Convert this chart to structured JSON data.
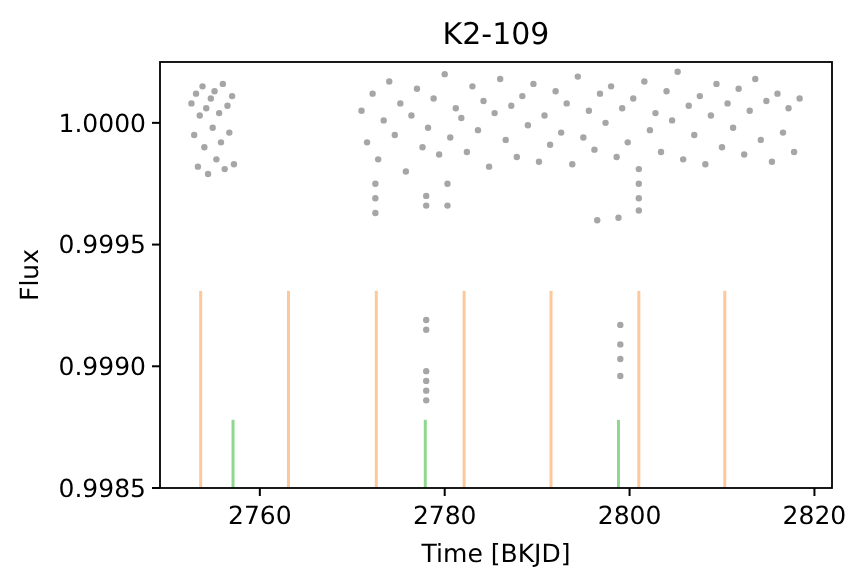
{
  "chart_data": {
    "type": "scatter",
    "title": "K2-109",
    "xlabel": "Time [BKJD]",
    "ylabel": "Flux",
    "xlim": [
      2749.2,
      2821.9
    ],
    "xticks": [
      2760,
      2780,
      2800,
      2820
    ],
    "ylim": [
      0.9985,
      1.00025
    ],
    "yticks": [
      0.9985,
      {
        "value": 0.999,
        "label": "0.9990"
      },
      0.9995,
      {
        "value": 1,
        "label": "1.0000"
      }
    ],
    "grid": false,
    "marker": "circle",
    "series": [
      {
        "color": "#000000",
        "x": [
          2752.6,
          2752.9,
          2753.1,
          2753.3,
          2753.5,
          2753.8,
          2754.0,
          2754.2,
          2754.4,
          2754.7,
          2754.9,
          2755.1,
          2755.3,
          2755.6,
          2755.8,
          2756.0,
          2756.2,
          2756.5,
          2756.7,
          2757.0,
          2757.2,
          2771.0,
          2771.6,
          2772.2,
          2772.8,
          2773.4,
          2774.0,
          2774.6,
          2775.2,
          2775.8,
          2776.4,
          2777.0,
          2777.6,
          2778.2,
          2778.8,
          2779.4,
          2780.0,
          2780.6,
          2781.2,
          2781.8,
          2782.4,
          2783.0,
          2783.6,
          2784.2,
          2784.8,
          2785.4,
          2786.0,
          2786.6,
          2787.2,
          2787.8,
          2788.4,
          2789.0,
          2789.6,
          2790.2,
          2790.8,
          2791.4,
          2792.0,
          2792.6,
          2793.2,
          2793.8,
          2794.4,
          2795.0,
          2795.6,
          2796.2,
          2796.8,
          2797.4,
          2798.0,
          2798.6,
          2799.2,
          2799.8,
          2800.4,
          2801.0,
          2801.6,
          2802.2,
          2802.8,
          2803.4,
          2804.0,
          2804.6,
          2805.2,
          2805.8,
          2806.4,
          2807.0,
          2807.6,
          2808.2,
          2808.8,
          2809.4,
          2810.0,
          2810.6,
          2811.2,
          2811.8,
          2812.4,
          2813.0,
          2813.6,
          2814.2,
          2814.8,
          2815.4,
          2816.0,
          2816.6,
          2817.2,
          2817.8,
          2818.4,
          2772.5,
          2772.5,
          2772.5,
          2778,
          2778,
          2778,
          2778,
          2778,
          2778,
          2778,
          2778,
          2780.3,
          2780.3,
          2796.5,
          2798.8,
          2799,
          2799,
          2799,
          2799,
          2801,
          2801,
          2801
        ],
        "values": [
          1.00008,
          0.99995,
          1.00012,
          0.99982,
          1.00003,
          1.00015,
          0.9999,
          1.00006,
          0.99979,
          1.0001,
          0.99998,
          1.00013,
          0.99985,
          1.00004,
          0.99992,
          1.00016,
          0.99981,
          1.00007,
          0.99996,
          1.00011,
          0.99983,
          1.00005,
          0.99992,
          1.00012,
          0.99985,
          1.00001,
          1.00017,
          0.99995,
          1.00008,
          0.9998,
          1.00003,
          1.00014,
          0.9999,
          0.99998,
          1.0001,
          0.99987,
          1.0002,
          0.99994,
          1.00006,
          1.00002,
          0.99988,
          1.00015,
          0.99997,
          1.00009,
          0.99982,
          1.00004,
          1.00018,
          0.99993,
          1.00007,
          0.99986,
          1.00011,
          0.99999,
          1.00016,
          0.99984,
          1.00003,
          0.99991,
          1.00013,
          0.99996,
          1.00008,
          0.99983,
          1.00019,
          0.99994,
          1.00005,
          0.99989,
          1.00012,
          1.0,
          1.00015,
          0.99986,
          1.00006,
          0.99992,
          1.0001,
          0.99981,
          1.00017,
          0.99997,
          1.00004,
          0.99988,
          1.00013,
          1.00001,
          1.00021,
          0.99985,
          1.00007,
          0.99995,
          1.00011,
          0.99983,
          1.00003,
          1.00016,
          0.9999,
          1.00008,
          0.99998,
          1.00014,
          0.99987,
          1.00005,
          1.00018,
          0.99993,
          1.00009,
          0.99984,
          1.00012,
          0.99996,
          1.00006,
          0.99988,
          1.0001,
          0.99975,
          0.99969,
          0.99963,
          0.9997,
          0.99966,
          0.99919,
          0.99915,
          0.99898,
          0.99894,
          0.9989,
          0.99886,
          0.99975,
          0.99966,
          0.9996,
          0.99961,
          0.99917,
          0.99909,
          0.99903,
          0.99896,
          0.99975,
          0.99969,
          0.99964
        ]
      },
      {
        "type": "bar",
        "color": "#fdc99a",
        "x": [
          2753.6,
          2763.1,
          2772.6,
          2782.1,
          2791.5,
          2801.0,
          2810.3
        ],
        "base": [
          0.9985,
          0.9985,
          0.9985,
          0.9985,
          0.9985,
          0.9985,
          0.9985
        ],
        "values": [
          0.00081,
          0.00081,
          0.00081,
          0.00081,
          0.00081,
          0.00081,
          0.00081
        ]
      },
      {
        "type": "bar",
        "color": "#90d890",
        "x": [
          2757.1,
          2777.9,
          2798.8
        ],
        "base": [
          0.9985,
          0.9985,
          0.9985
        ],
        "values": [
          0.00028,
          0.00028,
          0.00028
        ]
      }
    ]
  }
}
